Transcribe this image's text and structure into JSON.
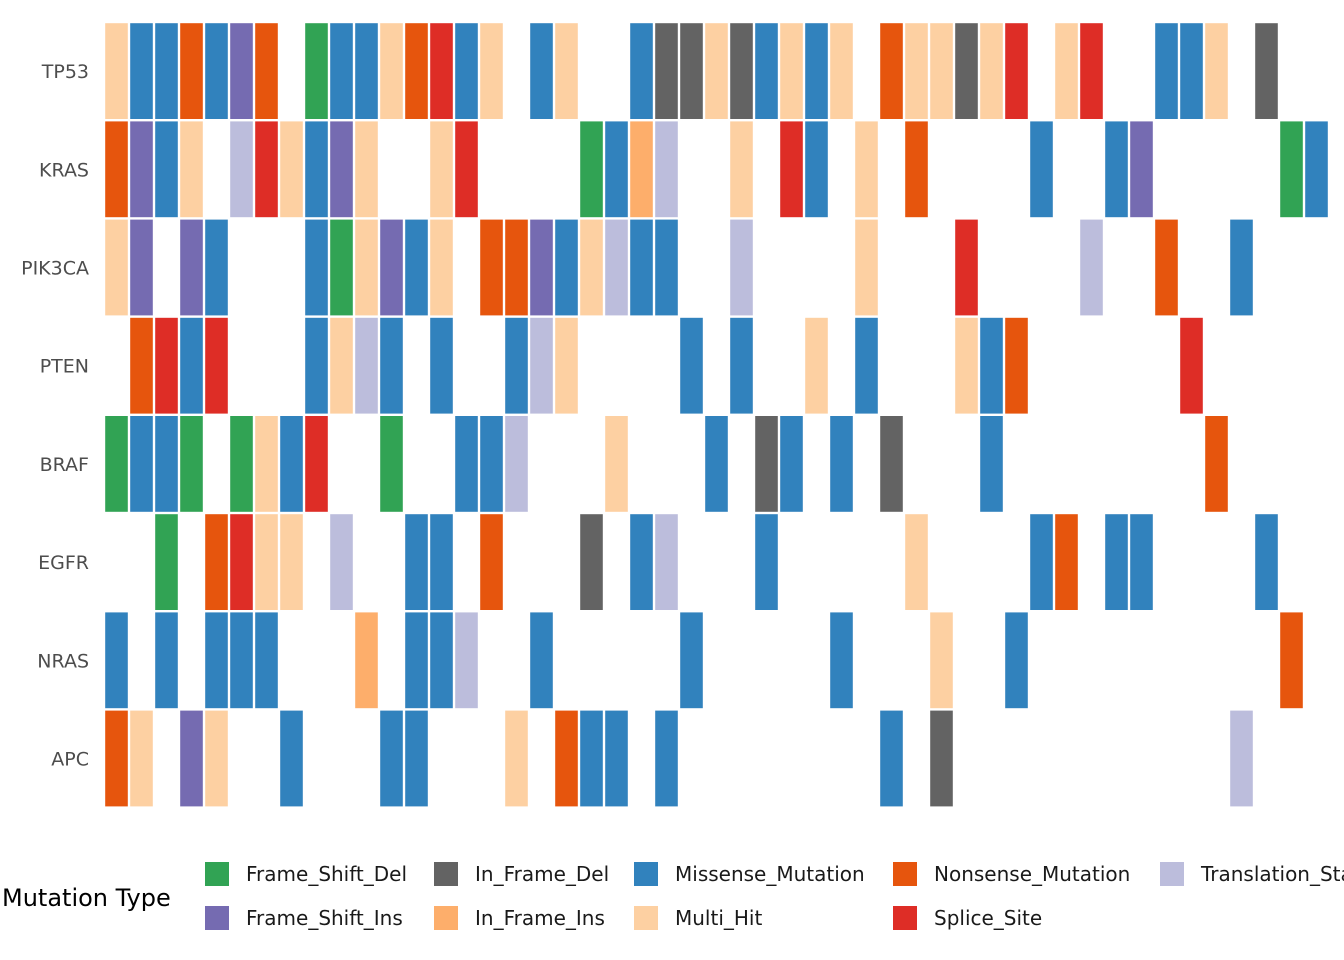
{
  "chart_data": {
    "type": "heatmap",
    "title": "",
    "xlabel": "",
    "ylabel": "",
    "genes": [
      "TP53",
      "KRAS",
      "PIK3CA",
      "PTEN",
      "BRAF",
      "EGFR",
      "NRAS",
      "APC"
    ],
    "sample_count": 49,
    "mutation_types": [
      {
        "name": "Frame_Shift_Del",
        "color": "#31a354"
      },
      {
        "name": "Frame_Shift_Ins",
        "color": "#756bb1"
      },
      {
        "name": "In_Frame_Del",
        "color": "#636363"
      },
      {
        "name": "In_Frame_Ins",
        "color": "#fdae6b"
      },
      {
        "name": "Missense_Mutation",
        "color": "#3182bd"
      },
      {
        "name": "Multi_Hit",
        "color": "#fdd0a2"
      },
      {
        "name": "Nonsense_Mutation",
        "color": "#e6550d"
      },
      {
        "name": "Splice_Site",
        "color": "#de2d26"
      },
      {
        "name": "Translation_Start_Site",
        "color": "#bcbddc"
      }
    ],
    "matrix": [
      [
        "Multi_Hit",
        "Missense_Mutation",
        "Missense_Mutation",
        "Nonsense_Mutation",
        "Missense_Mutation",
        "Frame_Shift_Ins",
        "Nonsense_Mutation",
        null,
        "Frame_Shift_Del",
        "Missense_Mutation",
        "Missense_Mutation",
        "Multi_Hit",
        "Nonsense_Mutation",
        "Splice_Site",
        "Missense_Mutation",
        "Multi_Hit",
        null,
        "Missense_Mutation",
        "Multi_Hit",
        null,
        null,
        "Missense_Mutation",
        "In_Frame_Del",
        "In_Frame_Del",
        "Multi_Hit",
        "In_Frame_Del",
        "Missense_Mutation",
        "Multi_Hit",
        "Missense_Mutation",
        "Multi_Hit",
        null,
        "Nonsense_Mutation",
        "Multi_Hit",
        "Multi_Hit",
        "In_Frame_Del",
        "Multi_Hit",
        "Splice_Site",
        null,
        "Multi_Hit",
        "Splice_Site",
        null,
        null,
        "Missense_Mutation",
        "Missense_Mutation",
        "Multi_Hit",
        null,
        "In_Frame_Del",
        null,
        null
      ],
      [
        "Nonsense_Mutation",
        "Frame_Shift_Ins",
        "Missense_Mutation",
        "Multi_Hit",
        null,
        "Translation_Start_Site",
        "Splice_Site",
        "Multi_Hit",
        "Missense_Mutation",
        "Frame_Shift_Ins",
        "Multi_Hit",
        null,
        null,
        "Multi_Hit",
        "Splice_Site",
        null,
        null,
        null,
        null,
        "Frame_Shift_Del",
        "Missense_Mutation",
        "In_Frame_Ins",
        "Translation_Start_Site",
        null,
        null,
        "Multi_Hit",
        null,
        "Splice_Site",
        "Missense_Mutation",
        null,
        "Multi_Hit",
        null,
        "Nonsense_Mutation",
        null,
        null,
        null,
        null,
        "Missense_Mutation",
        null,
        null,
        "Missense_Mutation",
        "Frame_Shift_Ins",
        null,
        null,
        null,
        null,
        null,
        "Frame_Shift_Del",
        "Missense_Mutation"
      ],
      [
        "Multi_Hit",
        "Frame_Shift_Ins",
        null,
        "Frame_Shift_Ins",
        "Missense_Mutation",
        null,
        null,
        null,
        "Missense_Mutation",
        "Frame_Shift_Del",
        "Multi_Hit",
        "Frame_Shift_Ins",
        "Missense_Mutation",
        "Multi_Hit",
        null,
        "Nonsense_Mutation",
        "Nonsense_Mutation",
        "Frame_Shift_Ins",
        "Missense_Mutation",
        "Multi_Hit",
        "Translation_Start_Site",
        "Missense_Mutation",
        "Missense_Mutation",
        null,
        null,
        "Translation_Start_Site",
        null,
        null,
        null,
        null,
        "Multi_Hit",
        null,
        null,
        null,
        "Splice_Site",
        null,
        null,
        null,
        null,
        "Translation_Start_Site",
        null,
        null,
        "Nonsense_Mutation",
        null,
        null,
        "Missense_Mutation",
        null,
        null,
        null
      ],
      [
        null,
        "Nonsense_Mutation",
        "Splice_Site",
        "Missense_Mutation",
        "Splice_Site",
        null,
        null,
        null,
        "Missense_Mutation",
        "Multi_Hit",
        "Translation_Start_Site",
        "Missense_Mutation",
        null,
        "Missense_Mutation",
        null,
        null,
        "Missense_Mutation",
        "Translation_Start_Site",
        "Multi_Hit",
        null,
        null,
        null,
        null,
        "Missense_Mutation",
        null,
        "Missense_Mutation",
        null,
        null,
        "Multi_Hit",
        null,
        "Missense_Mutation",
        null,
        null,
        null,
        "Multi_Hit",
        "Missense_Mutation",
        "Nonsense_Mutation",
        null,
        null,
        null,
        null,
        null,
        null,
        "Splice_Site",
        null,
        null,
        null,
        null,
        null
      ],
      [
        "Frame_Shift_Del",
        "Missense_Mutation",
        "Missense_Mutation",
        "Frame_Shift_Del",
        null,
        "Frame_Shift_Del",
        "Multi_Hit",
        "Missense_Mutation",
        "Splice_Site",
        null,
        null,
        "Frame_Shift_Del",
        null,
        null,
        "Missense_Mutation",
        "Missense_Mutation",
        "Translation_Start_Site",
        null,
        null,
        null,
        "Multi_Hit",
        null,
        null,
        null,
        "Missense_Mutation",
        null,
        "In_Frame_Del",
        "Missense_Mutation",
        null,
        "Missense_Mutation",
        null,
        "In_Frame_Del",
        null,
        null,
        null,
        "Missense_Mutation",
        null,
        null,
        null,
        null,
        null,
        null,
        null,
        null,
        "Nonsense_Mutation",
        null,
        null,
        null,
        null
      ],
      [
        null,
        null,
        "Frame_Shift_Del",
        null,
        "Nonsense_Mutation",
        "Splice_Site",
        "Multi_Hit",
        "Multi_Hit",
        null,
        "Translation_Start_Site",
        null,
        null,
        "Missense_Mutation",
        "Missense_Mutation",
        null,
        "Nonsense_Mutation",
        null,
        null,
        null,
        "In_Frame_Del",
        null,
        "Missense_Mutation",
        "Translation_Start_Site",
        null,
        null,
        null,
        "Missense_Mutation",
        null,
        null,
        null,
        null,
        null,
        "Multi_Hit",
        null,
        null,
        null,
        null,
        "Missense_Mutation",
        "Nonsense_Mutation",
        null,
        "Missense_Mutation",
        "Missense_Mutation",
        null,
        null,
        null,
        null,
        "Missense_Mutation",
        null,
        null
      ],
      [
        "Missense_Mutation",
        null,
        "Missense_Mutation",
        null,
        "Missense_Mutation",
        "Missense_Mutation",
        "Missense_Mutation",
        null,
        null,
        null,
        "In_Frame_Ins",
        null,
        "Missense_Mutation",
        "Missense_Mutation",
        "Translation_Start_Site",
        null,
        null,
        "Missense_Mutation",
        null,
        null,
        null,
        null,
        null,
        "Missense_Mutation",
        null,
        null,
        null,
        null,
        null,
        "Missense_Mutation",
        null,
        null,
        null,
        "Multi_Hit",
        null,
        null,
        "Missense_Mutation",
        null,
        null,
        null,
        null,
        null,
        null,
        null,
        null,
        null,
        null,
        "Nonsense_Mutation",
        null
      ],
      [
        "Nonsense_Mutation",
        "Multi_Hit",
        null,
        "Frame_Shift_Ins",
        "Multi_Hit",
        null,
        null,
        "Missense_Mutation",
        null,
        null,
        null,
        "Missense_Mutation",
        "Missense_Mutation",
        null,
        null,
        null,
        "Multi_Hit",
        null,
        "Nonsense_Mutation",
        "Missense_Mutation",
        "Missense_Mutation",
        null,
        "Missense_Mutation",
        null,
        null,
        null,
        null,
        null,
        null,
        null,
        null,
        "Missense_Mutation",
        null,
        "In_Frame_Del",
        null,
        null,
        null,
        null,
        null,
        null,
        null,
        null,
        null,
        null,
        null,
        "Translation_Start_Site",
        null,
        null,
        null
      ]
    ],
    "legend": {
      "title": "Mutation Type",
      "position": "bottom",
      "columns": [
        [
          "Frame_Shift_Del",
          "Frame_Shift_Ins"
        ],
        [
          "In_Frame_Del",
          "In_Frame_Ins"
        ],
        [
          "Missense_Mutation",
          "Multi_Hit"
        ],
        [
          "Nonsense_Mutation",
          "Splice_Site"
        ],
        [
          "Translation_Start_Site"
        ]
      ]
    }
  }
}
